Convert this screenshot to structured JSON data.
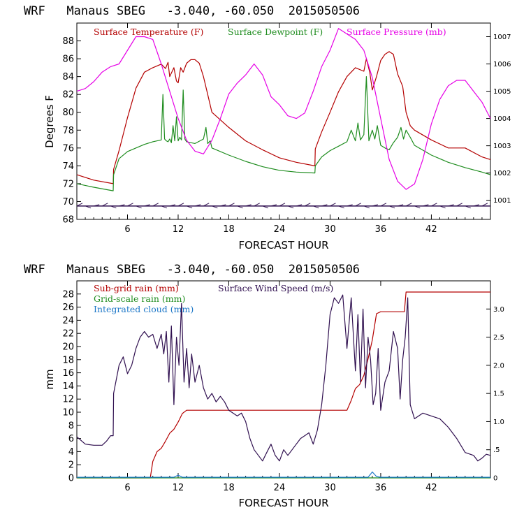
{
  "chart_data": [
    {
      "type": "line",
      "title": "WRF   Manaus SBEG   -3.040, -60.050  2015050506",
      "xlabel": "FORECAST HOUR",
      "ylabel": "Degrees F",
      "xlim": [
        0,
        49
      ],
      "ylim": [
        68,
        90
      ],
      "xticks": [
        6,
        12,
        18,
        24,
        30,
        36,
        42
      ],
      "yticks": [
        68,
        70,
        72,
        74,
        76,
        78,
        80,
        82,
        84,
        86,
        88
      ],
      "y2lim": [
        1000.3,
        1007.5
      ],
      "y2ticks": [
        1001,
        1002,
        1003,
        1004,
        1005,
        1006,
        1007
      ],
      "legend_position": "top",
      "series": [
        {
          "name": "Surface Temperature (F)",
          "color": "#b40000",
          "axis": "left",
          "x": [
            0,
            2,
            4.3,
            4.35,
            5,
            6,
            7,
            8,
            9,
            10,
            10.5,
            10.8,
            11,
            11.5,
            11.8,
            12,
            12.3,
            12.6,
            13,
            13.5,
            14,
            14.5,
            15,
            15.5,
            16,
            18,
            20,
            22,
            24,
            26,
            28.2,
            28.25,
            29,
            30,
            31,
            32,
            33,
            34,
            34.3,
            34.7,
            35,
            35.5,
            36,
            36.5,
            37,
            37.5,
            38,
            38.6,
            39,
            39.5,
            40,
            42,
            44,
            46,
            48,
            49
          ],
          "y": [
            73.0,
            72.4,
            72.0,
            73.6,
            75.7,
            79.4,
            82.7,
            84.5,
            85.0,
            85.4,
            84.9,
            85.6,
            84.0,
            85.0,
            83.5,
            83.3,
            85.0,
            84.5,
            85.5,
            85.9,
            85.9,
            85.5,
            84.0,
            82.0,
            80.0,
            78.3,
            76.8,
            75.8,
            74.9,
            74.4,
            74.0,
            75.9,
            77.8,
            80.0,
            82.3,
            84.0,
            85.0,
            84.6,
            86.0,
            84.5,
            82.5,
            84.0,
            85.8,
            86.5,
            86.8,
            86.5,
            84.3,
            82.9,
            80.0,
            78.5,
            78.0,
            76.9,
            76.0,
            76.0,
            75.0,
            74.7
          ]
        },
        {
          "name": "Surface Dewpoint (F)",
          "color": "#1e8c1e",
          "axis": "left",
          "x": [
            0,
            2,
            4.3,
            4.35,
            5,
            6,
            7,
            8,
            9,
            10,
            10.2,
            10.4,
            10.6,
            10.8,
            11,
            11.2,
            11.4,
            11.6,
            11.8,
            12,
            12.2,
            12.4,
            12.6,
            12.8,
            13,
            14,
            15,
            15.3,
            15.5,
            15.8,
            16,
            18,
            20,
            22,
            24,
            26,
            28.2,
            28.25,
            29,
            30,
            31,
            32,
            32.5,
            33,
            33.3,
            33.6,
            34,
            34.3,
            34.6,
            35,
            35.3,
            35.6,
            36,
            36.5,
            37,
            37.5,
            38,
            38.4,
            38.7,
            39,
            39.5,
            40,
            42,
            44,
            46,
            48,
            49
          ],
          "y": [
            72.0,
            71.6,
            71.2,
            73.0,
            74.8,
            75.6,
            76.0,
            76.4,
            76.7,
            76.9,
            82.0,
            77.0,
            76.8,
            76.7,
            77.0,
            76.6,
            78.5,
            76.8,
            79.5,
            76.8,
            77.2,
            76.9,
            82.5,
            77.0,
            76.7,
            76.5,
            77.0,
            78.3,
            76.5,
            76.8,
            76.0,
            75.2,
            74.5,
            73.9,
            73.5,
            73.3,
            73.2,
            74.0,
            75.0,
            75.7,
            76.2,
            76.7,
            78.0,
            76.8,
            78.8,
            76.9,
            77.5,
            84.0,
            76.8,
            78.0,
            77.0,
            78.5,
            76.3,
            76.0,
            75.8,
            76.6,
            77.2,
            78.3,
            77.0,
            78.0,
            77.2,
            76.3,
            75.2,
            74.4,
            73.8,
            73.3,
            73.0
          ]
        },
        {
          "name": "Surface Pressure (mb)",
          "color": "#e600e6",
          "axis": "right",
          "x": [
            0,
            1,
            2,
            3,
            4,
            5,
            6,
            7,
            8,
            9,
            10,
            11,
            12,
            13,
            14,
            15,
            16,
            17,
            18,
            19,
            20,
            21,
            22,
            23,
            24,
            25,
            26,
            27,
            28,
            29,
            30,
            31,
            32,
            33,
            34,
            35,
            36,
            37,
            38,
            39,
            40,
            41,
            42,
            43,
            44,
            45,
            46,
            47,
            48,
            49
          ],
          "y": [
            1005.0,
            1005.1,
            1005.35,
            1005.7,
            1005.9,
            1006.0,
            1006.5,
            1007.0,
            1007.0,
            1006.9,
            1006.0,
            1005.0,
            1004.0,
            1003.2,
            1002.8,
            1002.7,
            1003.2,
            1004.0,
            1004.9,
            1005.3,
            1005.6,
            1006.0,
            1005.6,
            1004.8,
            1004.5,
            1004.1,
            1004.0,
            1004.2,
            1005.0,
            1005.9,
            1006.5,
            1007.3,
            1007.1,
            1006.9,
            1006.5,
            1005.5,
            1004.0,
            1002.5,
            1001.7,
            1001.4,
            1001.6,
            1002.5,
            1003.8,
            1004.7,
            1005.2,
            1005.4,
            1005.4,
            1005.0,
            1004.6,
            1004.0
          ]
        },
        {
          "name": "",
          "type": "wind-barbs",
          "color": "#301050",
          "axis": "left",
          "y_level": 69.5,
          "x": [
            0,
            1,
            2,
            3,
            4,
            5,
            6,
            7,
            8,
            9,
            10,
            11,
            12,
            13,
            14,
            15,
            16,
            17,
            18,
            19,
            20,
            21,
            22,
            23,
            24,
            25,
            26,
            27,
            28,
            29,
            30,
            31,
            32,
            33,
            34,
            35,
            36,
            37,
            38,
            39,
            40,
            41,
            42,
            43,
            44,
            45,
            46,
            47,
            48
          ]
        }
      ]
    },
    {
      "type": "line",
      "title": "WRF   Manaus SBEG   -3.040, -60.050  2015050506",
      "xlabel": "FORECAST HOUR",
      "ylabel": "mm",
      "xlim": [
        0,
        49
      ],
      "ylim": [
        0,
        30
      ],
      "xticks": [
        6,
        12,
        18,
        24,
        30,
        36,
        42
      ],
      "yticks": [
        0,
        2,
        4,
        6,
        8,
        10,
        12,
        14,
        16,
        18,
        20,
        22,
        24,
        26,
        28
      ],
      "y2lim": [
        0,
        3.5
      ],
      "y2ticks": [
        0,
        0.5,
        1.0,
        1.5,
        2.0,
        2.5,
        3.0
      ],
      "y2ticklabels": [
        "0",
        ".5",
        "1.0",
        "1.5",
        "2.0",
        "2.5",
        "3.0"
      ],
      "legend_position": "top",
      "series": [
        {
          "name": "Sub-grid rain (mm)",
          "color": "#b40000",
          "axis": "left",
          "x": [
            0,
            8.7,
            9,
            9.5,
            10,
            10.5,
            11,
            11.5,
            12,
            12.5,
            13,
            14,
            16,
            18,
            20,
            24,
            28,
            30,
            32,
            32.5,
            33,
            33.5,
            34,
            34.5,
            35,
            35.5,
            36,
            37,
            38,
            38.8,
            39,
            40,
            44,
            49
          ],
          "y": [
            0,
            0,
            2.5,
            4.0,
            4.5,
            5.6,
            6.8,
            7.4,
            8.5,
            9.8,
            10.3,
            10.3,
            10.3,
            10.3,
            10.3,
            10.3,
            10.3,
            10.3,
            10.3,
            11.8,
            13.6,
            14.2,
            15.6,
            18.1,
            21.0,
            25.0,
            25.3,
            25.3,
            25.3,
            25.3,
            28.3,
            28.3,
            28.3,
            28.3
          ]
        },
        {
          "name": "Grid-scale rain (mm)",
          "color": "#1e8c1e",
          "axis": "left",
          "x": [
            0,
            49
          ],
          "y": [
            0,
            0
          ]
        },
        {
          "name": "Integrated cloud (mm)",
          "color": "#1e78c8",
          "axis": "left",
          "x": [
            0,
            11.5,
            12,
            12.5,
            13,
            34.5,
            35,
            35.5,
            36,
            49
          ],
          "y": [
            0.1,
            0.1,
            0.4,
            0.1,
            0.1,
            0.1,
            0.9,
            0.2,
            0.1,
            0.1
          ]
        },
        {
          "name": "Surface Wind Speed (m/s)",
          "color": "#301050",
          "axis": "right",
          "x": [
            0,
            1,
            2,
            3,
            3.5,
            4,
            4.3,
            4.35,
            5,
            5.5,
            6,
            6.5,
            7,
            7.5,
            8,
            8.5,
            9,
            9.5,
            10,
            10.3,
            10.6,
            10.9,
            11.2,
            11.5,
            11.8,
            12.1,
            12.4,
            12.7,
            13,
            13.3,
            13.6,
            14,
            14.5,
            15,
            15.5,
            16,
            16.5,
            17,
            17.5,
            18,
            18.5,
            19,
            19.5,
            20,
            20.5,
            21,
            21.5,
            22,
            22.5,
            23,
            23.5,
            24,
            24.5,
            25,
            25.5,
            26,
            26.5,
            27,
            27.5,
            28,
            28.5,
            29,
            29.5,
            30,
            30.5,
            31,
            31.5,
            32,
            32.5,
            33,
            33.3,
            33.6,
            33.9,
            34.2,
            34.5,
            34.8,
            35.1,
            35.4,
            35.7,
            36,
            36.5,
            37,
            37.5,
            38,
            38.3,
            38.6,
            38.9,
            39.2,
            39.5,
            40,
            41,
            42,
            43,
            44,
            45,
            46,
            47,
            47.5,
            48,
            48.5,
            49
          ],
          "y": [
            0.73,
            0.6,
            0.58,
            0.58,
            0.65,
            0.75,
            0.75,
            1.5,
            2.0,
            2.15,
            1.85,
            2.0,
            2.3,
            2.5,
            2.6,
            2.5,
            2.55,
            2.3,
            2.55,
            2.2,
            2.6,
            1.7,
            2.7,
            1.3,
            2.5,
            2.0,
            3.1,
            1.7,
            2.3,
            1.6,
            2.2,
            1.7,
            2.0,
            1.6,
            1.4,
            1.5,
            1.35,
            1.45,
            1.35,
            1.2,
            1.15,
            1.1,
            1.15,
            1.0,
            0.7,
            0.5,
            0.4,
            0.3,
            0.45,
            0.6,
            0.4,
            0.3,
            0.5,
            0.4,
            0.5,
            0.6,
            0.7,
            0.75,
            0.8,
            0.6,
            0.85,
            1.3,
            2.0,
            2.9,
            3.2,
            3.1,
            3.25,
            2.3,
            3.2,
            1.9,
            2.9,
            1.7,
            3.0,
            1.6,
            2.5,
            2.1,
            1.3,
            1.5,
            2.3,
            1.2,
            1.7,
            1.9,
            2.6,
            2.3,
            1.4,
            2.1,
            2.5,
            3.2,
            1.3,
            1.05,
            1.15,
            1.1,
            1.05,
            0.9,
            0.7,
            0.45,
            0.4,
            0.3,
            0.35,
            0.42,
            0.4
          ]
        }
      ]
    }
  ]
}
